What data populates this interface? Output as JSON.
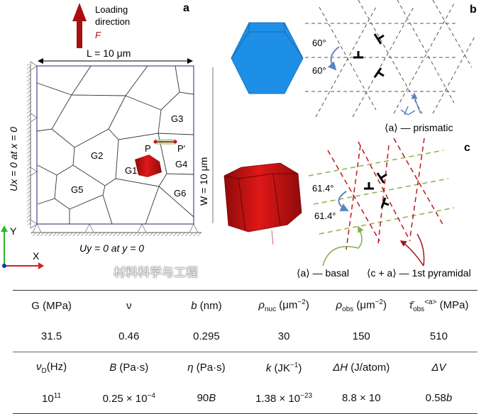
{
  "panel_a": {
    "label": "a",
    "loading": [
      "Loading",
      "direction"
    ],
    "force": "F",
    "length": "L = 10 μm",
    "width": "W = 10 μm",
    "bc_x": "Ux = 0 at x = 0",
    "bc_y": "Uy = 0 at y = 0",
    "grains": [
      "G1",
      "G2",
      "G3",
      "G4",
      "G5",
      "G6"
    ],
    "points": [
      "P",
      "P′"
    ],
    "axes": [
      "X",
      "Y"
    ]
  },
  "panel_b": {
    "label": "b",
    "angle1": "60°",
    "angle2": "60°",
    "slip": "⟨a⟩ — prismatic"
  },
  "panel_c": {
    "label": "c",
    "angle1": "61.4°",
    "angle2": "61.4°",
    "slip_basal": "⟨a⟩ — basal",
    "slip_pyr": "⟨c + a⟩ — 1st pyramidal"
  },
  "table": {
    "header1": [
      {
        "sym": "G",
        "unit": " (MPa)"
      },
      {
        "sym": "ν",
        "unit": ""
      },
      {
        "sym": "b",
        "unit": " (nm)"
      },
      {
        "sym": "ρ",
        "sub": "nuc",
        "unit": " (μm",
        "sup": "−2",
        "end": ")"
      },
      {
        "sym": "ρ",
        "sub": "obs",
        "unit": " (μm",
        "sup": "−2",
        "end": ")"
      },
      {
        "sym": "τ̄",
        "sub": "obs",
        "sup": "<a>",
        "unit": " (MPa)"
      }
    ],
    "values1": [
      "31.5",
      "0.46",
      "0.295",
      "30",
      "150",
      "510"
    ],
    "header2": [
      {
        "sym": "ν",
        "sub": "D",
        "unit": "(Hz)"
      },
      {
        "sym": "B",
        "unit": " (Pa·s)"
      },
      {
        "sym": "η",
        "unit": " (Pa·s)"
      },
      {
        "sym": "k",
        "unit": " (JK",
        "sup": "−1",
        "end": ")"
      },
      {
        "sym": "ΔH",
        "unit": " (J/atom)"
      },
      {
        "sym": "ΔV",
        "unit": ""
      }
    ],
    "values2": [
      {
        "base": "10",
        "sup": "11"
      },
      {
        "base": "0.25 × 10",
        "sup": "−4"
      },
      {
        "base": "90",
        "ital": "B"
      },
      {
        "base": "1.38 × 10",
        "sup": "−23"
      },
      {
        "base": "8.8 × 10",
        "sup": ""
      },
      {
        "base": "0.58",
        "ital": "b"
      }
    ]
  },
  "watermark": "材料科学与工程",
  "colors": {
    "blue": "#1e8fe6",
    "red": "#c8101a",
    "green": "#8fb04a",
    "arrow_blue": "#5a86c0",
    "dark_red": "#a31515"
  }
}
